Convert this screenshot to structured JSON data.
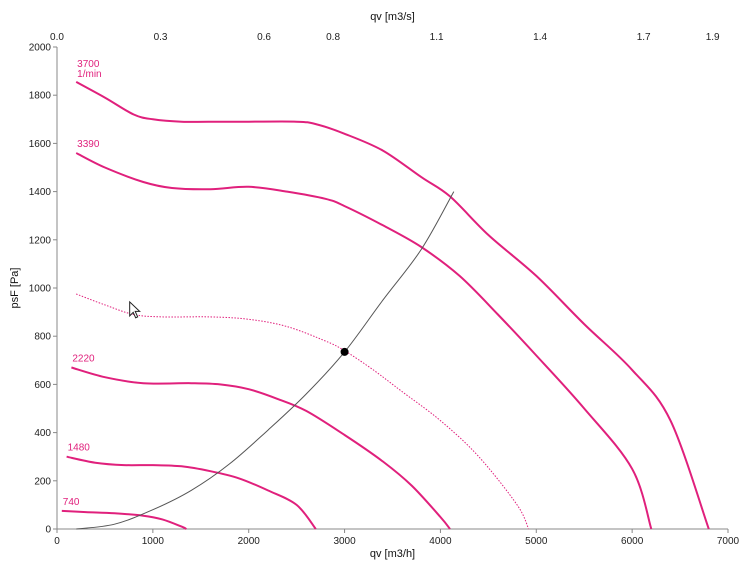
{
  "chart_data": {
    "type": "line",
    "title": "",
    "xlabel": "qv [m3/h]",
    "x2label": "qv [m3/s]",
    "ylabel": "psF [Pa]",
    "xlim": [
      0,
      7000
    ],
    "ylim": [
      0,
      2000
    ],
    "x_ticks": [
      0,
      1000,
      2000,
      3000,
      4000,
      5000,
      6000,
      7000
    ],
    "x_tick_labels": [
      "0",
      "1000",
      "2000",
      "3000",
      "4000",
      "5000",
      "6000",
      "7000"
    ],
    "y_ticks": [
      0,
      200,
      400,
      600,
      800,
      1000,
      1200,
      1400,
      1600,
      1800,
      2000
    ],
    "y_tick_labels": [
      "0",
      "200",
      "400",
      "600",
      "800",
      "1000",
      "1200",
      "1400",
      "1600",
      "1800",
      "2000"
    ],
    "x2_ticks": [
      0,
      1080,
      2160,
      2880,
      3960,
      5040,
      6120,
      6840
    ],
    "x2_tick_labels": [
      "0.0",
      "0.3",
      "0.6",
      "0.8",
      "1.1",
      "1.4",
      "1.7",
      "1.9"
    ],
    "grid": false,
    "legend": "none",
    "colors": {
      "curve": "#e0207c",
      "system": "#555555",
      "point": "#000000"
    },
    "series": [
      {
        "name": "3700",
        "name2": "1/min",
        "style": "solid",
        "x": [
          200,
          500,
          800,
          1000,
          1300,
          1700,
          2000,
          2500,
          2700,
          3000,
          3400,
          3800,
          4100,
          4500,
          5000,
          5500,
          6000,
          6400,
          6800
        ],
        "y": [
          1855,
          1790,
          1720,
          1700,
          1690,
          1690,
          1690,
          1690,
          1680,
          1640,
          1570,
          1460,
          1380,
          1220,
          1050,
          850,
          660,
          450,
          0
        ]
      },
      {
        "name": "3390",
        "style": "solid",
        "x": [
          200,
          500,
          900,
          1200,
          1600,
          2000,
          2400,
          2800,
          3000,
          3400,
          3800,
          4200,
          4600,
          5000,
          5500,
          6000,
          6200
        ],
        "y": [
          1560,
          1500,
          1440,
          1415,
          1410,
          1420,
          1400,
          1370,
          1340,
          1260,
          1170,
          1050,
          890,
          720,
          500,
          250,
          0
        ]
      },
      {
        "name": "",
        "style": "dotted",
        "x": [
          200,
          500,
          800,
          1100,
          1600,
          2000,
          2400,
          2800,
          3000,
          3300,
          3600,
          4000,
          4400,
          4800,
          4920
        ],
        "y": [
          975,
          930,
          890,
          880,
          880,
          870,
          840,
          780,
          740,
          660,
          570,
          450,
          300,
          100,
          0
        ]
      },
      {
        "name": "2220",
        "style": "solid",
        "x": [
          150,
          500,
          900,
          1400,
          1700,
          2000,
          2300,
          2600,
          3000,
          3400,
          3700,
          4000,
          4100
        ],
        "y": [
          670,
          630,
          605,
          605,
          600,
          580,
          540,
          490,
          390,
          280,
          180,
          50,
          0
        ]
      },
      {
        "name": "1480",
        "style": "solid",
        "x": [
          100,
          400,
          700,
          1000,
          1300,
          1600,
          1900,
          2200,
          2500,
          2700
        ],
        "y": [
          300,
          275,
          265,
          265,
          260,
          240,
          210,
          160,
          100,
          0
        ]
      },
      {
        "name": "740",
        "style": "solid",
        "x": [
          50,
          300,
          600,
          900,
          1100,
          1300,
          1350
        ],
        "y": [
          75,
          70,
          65,
          55,
          40,
          10,
          0
        ]
      },
      {
        "name": "",
        "style": "system",
        "x": [
          200,
          600,
          1000,
          1400,
          1800,
          2200,
          2600,
          3000,
          3400,
          3800,
          4140
        ],
        "y": [
          0,
          20,
          80,
          160,
          270,
          410,
          560,
          735,
          950,
          1160,
          1400
        ]
      }
    ],
    "operating_point": {
      "x": 3000,
      "y": 735
    }
  }
}
